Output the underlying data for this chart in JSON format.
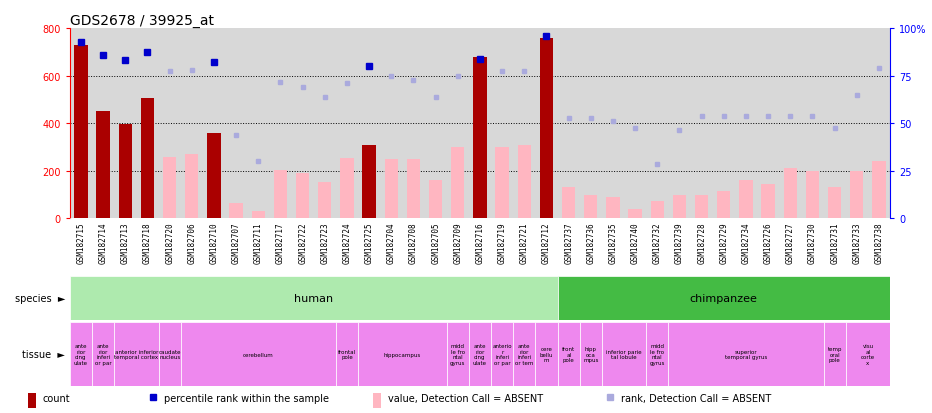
{
  "title": "GDS2678 / 39925_at",
  "samples": [
    "GSM182715",
    "GSM182714",
    "GSM182713",
    "GSM182718",
    "GSM182720",
    "GSM182706",
    "GSM182710",
    "GSM182707",
    "GSM182711",
    "GSM182717",
    "GSM182722",
    "GSM182723",
    "GSM182724",
    "GSM182725",
    "GSM182704",
    "GSM182708",
    "GSM182705",
    "GSM182709",
    "GSM182716",
    "GSM182719",
    "GSM182721",
    "GSM182712",
    "GSM182737",
    "GSM182736",
    "GSM182735",
    "GSM182740",
    "GSM182732",
    "GSM182739",
    "GSM182728",
    "GSM182729",
    "GSM182734",
    "GSM182726",
    "GSM182727",
    "GSM182730",
    "GSM182731",
    "GSM182733",
    "GSM182738"
  ],
  "count_values": [
    730,
    450,
    395,
    505,
    null,
    null,
    360,
    null,
    null,
    null,
    null,
    null,
    null,
    310,
    null,
    null,
    null,
    null,
    680,
    null,
    null,
    760,
    null,
    null,
    null,
    null,
    null,
    null,
    null,
    null,
    null,
    null,
    null,
    null,
    null,
    null,
    null
  ],
  "absent_values": [
    null,
    null,
    null,
    null,
    260,
    270,
    null,
    65,
    30,
    205,
    190,
    155,
    255,
    null,
    250,
    250,
    160,
    300,
    null,
    300,
    310,
    null,
    130,
    100,
    90,
    40,
    75,
    100,
    100,
    115,
    160,
    145,
    210,
    200,
    130,
    200,
    240
  ],
  "rank_present": [
    740,
    685,
    665,
    700,
    null,
    null,
    655,
    null,
    null,
    null,
    null,
    null,
    null,
    640,
    null,
    null,
    null,
    null,
    670,
    null,
    null,
    765,
    null,
    null,
    null,
    null,
    null,
    null,
    null,
    null,
    null,
    null,
    null,
    null,
    null,
    null,
    null
  ],
  "rank_absent": [
    null,
    null,
    null,
    null,
    620,
    625,
    null,
    350,
    240,
    575,
    550,
    510,
    570,
    null,
    600,
    580,
    510,
    600,
    null,
    620,
    620,
    null,
    420,
    420,
    410,
    380,
    230,
    370,
    430,
    430,
    430,
    430,
    430,
    430,
    380,
    520,
    630
  ],
  "species_data": [
    {
      "label": "human",
      "start": 0,
      "end": 21,
      "color": "#aeeaae"
    },
    {
      "label": "chimpanzee",
      "start": 22,
      "end": 36,
      "color": "#44bb44"
    }
  ],
  "tissues_data": [
    {
      "label": "ante\nrior\ncing\nulate",
      "start": 0,
      "end": 0
    },
    {
      "label": "ante\nrior\ninferi\nor par",
      "start": 1,
      "end": 1
    },
    {
      "label": "anterior inferior\ntemporal cortex",
      "start": 2,
      "end": 3
    },
    {
      "label": "caudate\nnucleus",
      "start": 4,
      "end": 4
    },
    {
      "label": "cerebellum",
      "start": 5,
      "end": 11
    },
    {
      "label": "frontal\npole",
      "start": 12,
      "end": 12
    },
    {
      "label": "hippocampus",
      "start": 13,
      "end": 16
    },
    {
      "label": "midd\nle fro\nntal\ngyrus",
      "start": 17,
      "end": 17
    },
    {
      "label": "ante\nrior\ncing\nulate",
      "start": 18,
      "end": 18
    },
    {
      "label": "anterio\nr\ninferi\nor par",
      "start": 19,
      "end": 19
    },
    {
      "label": "ante\nrior\ninferi\nor tem",
      "start": 20,
      "end": 20
    },
    {
      "label": "cere\nbellu\nm",
      "start": 21,
      "end": 21
    },
    {
      "label": "front\nal\npole",
      "start": 22,
      "end": 22
    },
    {
      "label": "hipp\noca\nmpus",
      "start": 23,
      "end": 23
    },
    {
      "label": "inferior parie\ntal lobule",
      "start": 24,
      "end": 25
    },
    {
      "label": "midd\nle fro\nntal\ngyrus",
      "start": 26,
      "end": 26
    },
    {
      "label": "superior\ntemporal gyrus",
      "start": 27,
      "end": 33
    },
    {
      "label": "temp\noral\npole",
      "start": 34,
      "end": 34
    },
    {
      "label": "visu\nal\ncorte\nx",
      "start": 35,
      "end": 36
    }
  ],
  "tissue_color": "#ee88ee",
  "ylim_left": [
    0,
    800
  ],
  "ylim_right": [
    0,
    100
  ],
  "yticks_left": [
    0,
    200,
    400,
    600,
    800
  ],
  "yticks_right": [
    0,
    25,
    50,
    75,
    100
  ],
  "bar_color_present": "#aa0000",
  "bar_color_absent": "#ffb6c1",
  "dot_color_present": "#0000cc",
  "dot_color_absent": "#aaaadd",
  "chart_bg": "#d8d8d8",
  "xtick_bg": "#cccccc",
  "title_fontsize": 10,
  "tick_fontsize": 5.5,
  "label_fontsize": 7
}
